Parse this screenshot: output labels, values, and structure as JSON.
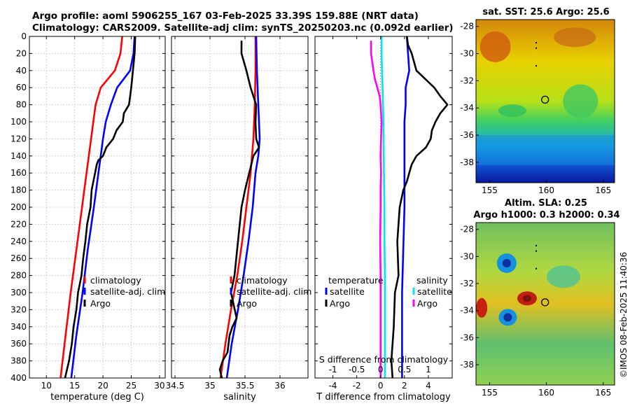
{
  "header": {
    "title_line1": "Argo profile: aoml 5906255_167 03-Feb-2025 33.39S 159.88E (NRT data)",
    "title_line2": "Climatology: CARS2009. Satellite-adj clim: synTS_20250203.nc (0.092d earlier)"
  },
  "chart_data": [
    {
      "type": "line",
      "id": "temperature-panel",
      "xlabel": "temperature (deg C)",
      "ylabel": "",
      "xlim": [
        7,
        31
      ],
      "ylim": [
        400,
        0
      ],
      "xticks": [
        10,
        15,
        20,
        25,
        30
      ],
      "yticks": [
        0,
        20,
        40,
        60,
        80,
        100,
        120,
        140,
        160,
        180,
        200,
        220,
        240,
        260,
        280,
        300,
        320,
        340,
        360,
        380,
        400
      ],
      "grid": true,
      "legend_placement": "center-right",
      "series": [
        {
          "name": "climatology",
          "color": "#ff0000",
          "depth": [
            0,
            20,
            40,
            60,
            80,
            100,
            120,
            140,
            160,
            200,
            250,
            300,
            350,
            400
          ],
          "values": [
            23.4,
            23.1,
            22.1,
            19.6,
            18.7,
            18.3,
            17.9,
            17.5,
            17.1,
            16.3,
            15.3,
            14.3,
            13.4,
            12.5
          ]
        },
        {
          "name": "satellite-adj. clim",
          "color": "#0000ff",
          "depth": [
            0,
            20,
            40,
            60,
            80,
            100,
            120,
            140,
            160,
            200,
            250,
            300,
            350,
            400
          ],
          "values": [
            25.6,
            25.4,
            24.8,
            22.5,
            21.4,
            20.5,
            20.0,
            19.6,
            19.2,
            18.4,
            17.3,
            16.4,
            15.3,
            14.4
          ]
        },
        {
          "name": "Argo",
          "color": "#000000",
          "depth": [
            0,
            20,
            40,
            60,
            70,
            80,
            90,
            100,
            110,
            120,
            130,
            140,
            145,
            150,
            160,
            180,
            200,
            220,
            240,
            260,
            280,
            300,
            320,
            340,
            360,
            380,
            400
          ],
          "values": [
            25.7,
            25.6,
            25.3,
            25.0,
            24.8,
            24.6,
            23.7,
            23.5,
            22.4,
            21.8,
            20.6,
            20.0,
            19.2,
            18.9,
            18.6,
            18.0,
            17.8,
            17.2,
            16.9,
            16.5,
            16.2,
            15.6,
            15.3,
            14.8,
            14.5,
            14.0,
            13.3
          ]
        }
      ]
    },
    {
      "type": "line",
      "id": "salinity-panel",
      "xlabel": "salinity",
      "ylabel": "",
      "xlim": [
        34.45,
        36.4
      ],
      "ylim": [
        400,
        0
      ],
      "xticks": [
        34.5,
        35,
        35.5,
        36
      ],
      "xticklabels": [
        "34.5",
        "35",
        "35.5",
        "36"
      ],
      "grid": true,
      "legend_placement": "center-right",
      "series": [
        {
          "name": "climatology",
          "color": "#ff0000",
          "depth": [
            0,
            40,
            80,
            120,
            160,
            200,
            240,
            280,
            320,
            360,
            400
          ],
          "values": [
            35.65,
            35.65,
            35.64,
            35.62,
            35.58,
            35.52,
            35.46,
            35.39,
            35.3,
            35.22,
            35.15
          ]
        },
        {
          "name": "satellite-adj. clim",
          "color": "#0000ff",
          "depth": [
            0,
            40,
            80,
            120,
            140,
            160,
            200,
            240,
            280,
            320,
            360,
            400
          ],
          "values": [
            35.66,
            35.67,
            35.69,
            35.71,
            35.69,
            35.65,
            35.61,
            35.55,
            35.48,
            35.4,
            35.31,
            35.24
          ]
        },
        {
          "name": "Argo",
          "color": "#000000",
          "depth": [
            5,
            20,
            40,
            60,
            80,
            100,
            120,
            130,
            140,
            160,
            180,
            200,
            240,
            280,
            300,
            330,
            340,
            350,
            370,
            380,
            390,
            400
          ],
          "values": [
            35.45,
            35.45,
            35.52,
            35.58,
            35.66,
            35.65,
            35.66,
            35.7,
            35.62,
            35.56,
            35.5,
            35.45,
            35.4,
            35.35,
            35.3,
            35.38,
            35.32,
            35.28,
            35.25,
            35.18,
            35.14,
            35.17
          ]
        }
      ]
    },
    {
      "type": "line",
      "id": "difference-panel",
      "xlabel": "T difference from climatology",
      "xlabel_top": "S difference from climatology",
      "xlim": [
        -5.5,
        6
      ],
      "ylim": [
        400,
        0
      ],
      "xticks": [
        -4,
        -2,
        0,
        2,
        4
      ],
      "top_xticks": [
        -1,
        -0.5,
        0,
        0.5,
        1
      ],
      "top_xticklabels": [
        "-1",
        "-0.5",
        "0",
        "0.5",
        "1"
      ],
      "grid": false,
      "zero_line": "dotted",
      "legend": {
        "temperature_title": "temperature",
        "salinity_title": "salinity",
        "entries": [
          {
            "name": "satellite",
            "group": "temperature",
            "color": "#0000ff"
          },
          {
            "name": "Argo",
            "group": "temperature",
            "color": "#000000"
          },
          {
            "name": "satellite",
            "group": "salinity",
            "color": "#00e5ee"
          },
          {
            "name": "Argo",
            "group": "salinity",
            "color": "#ff00ff"
          }
        ]
      },
      "series": [
        {
          "name": "T satellite",
          "color": "#0000ff",
          "depth": [
            0,
            40,
            60,
            80,
            100,
            140,
            200,
            300,
            400
          ],
          "values": [
            2.2,
            2.4,
            2.1,
            2.1,
            2.0,
            2.0,
            2.0,
            1.8,
            1.8
          ]
        },
        {
          "name": "T Argo",
          "color": "#000000",
          "depth": [
            0,
            10,
            20,
            40,
            60,
            70,
            80,
            90,
            100,
            110,
            120,
            130,
            140,
            150,
            160,
            170,
            180,
            200,
            240,
            280,
            300,
            340,
            380,
            400
          ],
          "values": [
            2.2,
            2.3,
            2.6,
            3.0,
            4.5,
            5.0,
            5.6,
            5.0,
            4.6,
            4.3,
            4.2,
            3.8,
            3.0,
            2.6,
            2.4,
            2.2,
            1.9,
            1.6,
            1.4,
            1.5,
            1.2,
            1.1,
            0.9,
            1.0
          ]
        },
        {
          "name": "S satellite",
          "color": "#00e5ee",
          "depth": [
            0,
            20,
            60,
            100,
            160,
            200,
            240,
            280,
            320,
            360,
            400
          ],
          "values": [
            0.02,
            0.02,
            0.04,
            0.06,
            0.07,
            0.08,
            0.08,
            0.09,
            0.09,
            0.09,
            0.09
          ]
        },
        {
          "name": "S Argo",
          "color": "#ff00ff",
          "depth": [
            5,
            20,
            40,
            50,
            60,
            70,
            80,
            100,
            140,
            160,
            180,
            200,
            240,
            280,
            320,
            360,
            380,
            400
          ],
          "values": [
            -0.2,
            -0.2,
            -0.15,
            -0.12,
            -0.07,
            -0.02,
            0.0,
            0.02,
            0.0,
            0.01,
            0.0,
            0.0,
            -0.01,
            0.0,
            0.0,
            0.0,
            0.0,
            0.0
          ]
        }
      ]
    },
    {
      "type": "heatmap",
      "id": "sst-map",
      "title": "sat. SST: 25.6 Argo: 25.6",
      "xlim": [
        153.8,
        166
      ],
      "ylim": [
        -39.5,
        -27.5
      ],
      "xticks": [
        155,
        160,
        165
      ],
      "yticks": [
        -28,
        -30,
        -32,
        -34,
        -36,
        -38
      ],
      "argo_position": {
        "lon": 159.88,
        "lat": -33.39
      }
    },
    {
      "type": "heatmap",
      "id": "sla-map",
      "title_line1": "Altim. SLA: 0.25",
      "title_line2": "Argo h1000: 0.3 h2000: 0.34",
      "xlim": [
        153.8,
        166
      ],
      "ylim": [
        -39.5,
        -27.5
      ],
      "xticks": [
        155,
        160,
        165
      ],
      "yticks": [
        -28,
        -30,
        -32,
        -34,
        -36,
        -38
      ],
      "argo_position": {
        "lon": 159.88,
        "lat": -33.39
      }
    }
  ],
  "legend_labels": {
    "climatology": "climatology",
    "satellite_adj": "satellite-adj. clim",
    "argo": "Argo"
  },
  "footer": {
    "credit": "©IMOS 08-Feb-2025 11:40:36"
  }
}
